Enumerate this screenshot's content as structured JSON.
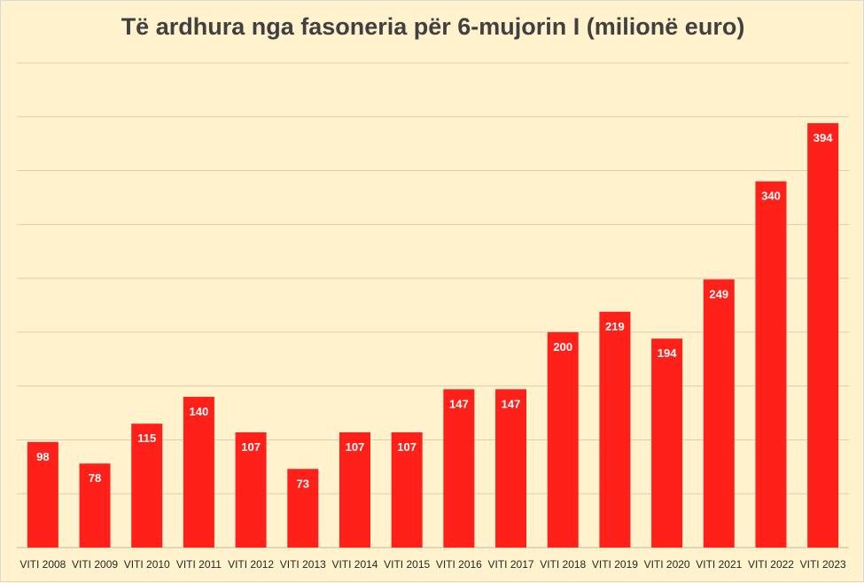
{
  "chart_data": {
    "type": "bar",
    "title": "Të ardhura nga fasoneria për 6-mujorin I (milionë euro)",
    "categories": [
      "VITI 2008",
      "VITI 2009",
      "VITI 2010",
      "VITI 2011",
      "VITI 2012",
      "VITI 2013",
      "VITI 2014",
      "VITI 2015",
      "VITI 2016",
      "VITI 2017",
      "VITI 2018",
      "VITI 2019",
      "VITI 2020",
      "VITI 2021",
      "VITI 2022",
      "VITI 2023"
    ],
    "values": [
      98,
      78,
      115,
      140,
      107,
      73,
      107,
      107,
      147,
      147,
      200,
      219,
      194,
      249,
      340,
      394
    ],
    "ylim": [
      0,
      450
    ],
    "grid": true,
    "colors": {
      "bar": "#ff2019",
      "background": "#fff2cc",
      "label": "#ffffff"
    }
  }
}
